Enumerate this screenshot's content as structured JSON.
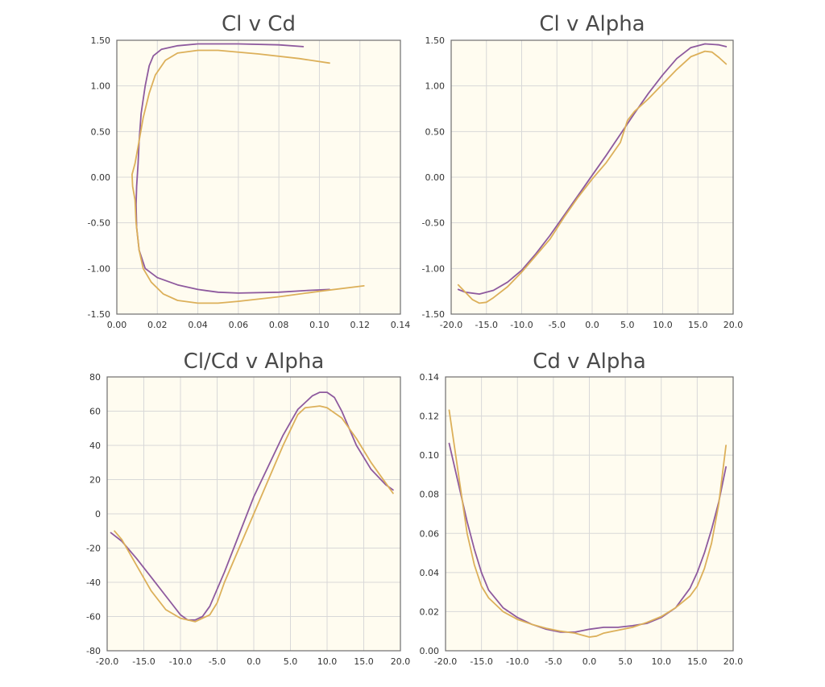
{
  "colors": {
    "series_a": "#8e5a9e",
    "series_b": "#dcb05a",
    "plot_bg": "#fffcf0",
    "grid": "#d8d8d8"
  },
  "chart_data": [
    {
      "type": "line",
      "title": "Cl v Cd",
      "xlabel": "",
      "ylabel": "",
      "xlim": [
        0,
        0.14
      ],
      "ylim": [
        -1.5,
        1.5
      ],
      "x_ticks": [
        "0.00",
        "0.02",
        "0.04",
        "0.06",
        "0.08",
        "0.10",
        "0.12",
        "0.14"
      ],
      "y_ticks": [
        "-1.50",
        "-1.00",
        "-0.50",
        "0.00",
        "0.50",
        "1.00",
        "1.50"
      ],
      "grid": true,
      "series": [
        {
          "points": [
            [
              0.092,
              1.43
            ],
            [
              0.08,
              1.45
            ],
            [
              0.06,
              1.46
            ],
            [
              0.04,
              1.46
            ],
            [
              0.03,
              1.44
            ],
            [
              0.022,
              1.4
            ],
            [
              0.018,
              1.33
            ],
            [
              0.016,
              1.22
            ],
            [
              0.014,
              1.0
            ],
            [
              0.012,
              0.7
            ],
            [
              0.011,
              0.4
            ],
            [
              0.0105,
              0.15
            ],
            [
              0.0098,
              -0.1
            ],
            [
              0.0095,
              -0.3
            ],
            [
              0.0098,
              -0.55
            ],
            [
              0.011,
              -0.8
            ],
            [
              0.014,
              -1.0
            ],
            [
              0.02,
              -1.1
            ],
            [
              0.03,
              -1.18
            ],
            [
              0.04,
              -1.23
            ],
            [
              0.05,
              -1.26
            ],
            [
              0.06,
              -1.27
            ],
            [
              0.08,
              -1.26
            ],
            [
              0.095,
              -1.24
            ],
            [
              0.105,
              -1.23
            ]
          ]
        },
        {
          "points": [
            [
              0.105,
              1.25
            ],
            [
              0.09,
              1.3
            ],
            [
              0.07,
              1.35
            ],
            [
              0.05,
              1.39
            ],
            [
              0.04,
              1.39
            ],
            [
              0.03,
              1.36
            ],
            [
              0.024,
              1.28
            ],
            [
              0.019,
              1.12
            ],
            [
              0.016,
              0.92
            ],
            [
              0.013,
              0.65
            ],
            [
              0.011,
              0.4
            ],
            [
              0.009,
              0.15
            ],
            [
              0.0075,
              0.03
            ],
            [
              0.0078,
              -0.1
            ],
            [
              0.009,
              -0.25
            ],
            [
              0.0095,
              -0.5
            ],
            [
              0.011,
              -0.8
            ],
            [
              0.013,
              -1.0
            ],
            [
              0.017,
              -1.15
            ],
            [
              0.023,
              -1.28
            ],
            [
              0.03,
              -1.35
            ],
            [
              0.04,
              -1.38
            ],
            [
              0.05,
              -1.38
            ],
            [
              0.06,
              -1.36
            ],
            [
              0.08,
              -1.31
            ],
            [
              0.1,
              -1.25
            ],
            [
              0.122,
              -1.19
            ]
          ]
        }
      ]
    },
    {
      "type": "line",
      "title": "Cl v Alpha",
      "xlabel": "",
      "ylabel": "",
      "xlim": [
        -20,
        20
      ],
      "ylim": [
        -1.5,
        1.5
      ],
      "x_ticks": [
        "-20.0",
        "-15.0",
        "-10.0",
        "-5.0",
        "0.0",
        "5.0",
        "10.0",
        "15.0",
        "20.0"
      ],
      "y_ticks": [
        "-1.50",
        "-1.00",
        "-0.50",
        "0.00",
        "0.50",
        "1.00",
        "1.50"
      ],
      "grid": true,
      "series": [
        {
          "points": [
            [
              -19,
              -1.23
            ],
            [
              -18,
              -1.26
            ],
            [
              -16,
              -1.28
            ],
            [
              -14,
              -1.24
            ],
            [
              -12,
              -1.15
            ],
            [
              -10,
              -1.02
            ],
            [
              -8,
              -0.84
            ],
            [
              -6,
              -0.64
            ],
            [
              -4,
              -0.42
            ],
            [
              -2,
              -0.2
            ],
            [
              0,
              0.02
            ],
            [
              2,
              0.24
            ],
            [
              4,
              0.47
            ],
            [
              6,
              0.7
            ],
            [
              8,
              0.92
            ],
            [
              10,
              1.12
            ],
            [
              12,
              1.3
            ],
            [
              14,
              1.42
            ],
            [
              16,
              1.46
            ],
            [
              18,
              1.45
            ],
            [
              19,
              1.43
            ]
          ]
        },
        {
          "points": [
            [
              -19,
              -1.18
            ],
            [
              -18,
              -1.26
            ],
            [
              -17,
              -1.34
            ],
            [
              -16,
              -1.38
            ],
            [
              -15,
              -1.37
            ],
            [
              -14,
              -1.32
            ],
            [
              -12,
              -1.2
            ],
            [
              -10,
              -1.04
            ],
            [
              -8,
              -0.86
            ],
            [
              -6,
              -0.68
            ],
            [
              -4,
              -0.44
            ],
            [
              -2,
              -0.22
            ],
            [
              0,
              -0.02
            ],
            [
              2,
              0.16
            ],
            [
              4,
              0.38
            ],
            [
              5,
              0.62
            ],
            [
              6,
              0.72
            ],
            [
              8,
              0.86
            ],
            [
              10,
              1.02
            ],
            [
              12,
              1.18
            ],
            [
              14,
              1.32
            ],
            [
              16,
              1.38
            ],
            [
              17,
              1.37
            ],
            [
              18,
              1.31
            ],
            [
              19,
              1.24
            ]
          ]
        }
      ]
    },
    {
      "type": "line",
      "title": "Cl/Cd v Alpha",
      "xlabel": "",
      "ylabel": "",
      "xlim": [
        -20,
        20
      ],
      "ylim": [
        -80,
        80
      ],
      "x_ticks": [
        "-20.0",
        "-15.0",
        "-10.0",
        "-5.0",
        "0.0",
        "5.0",
        "10.0",
        "15.0",
        "20.0"
      ],
      "y_ticks": [
        "-80",
        "-60",
        "-40",
        "-20",
        "0",
        "20",
        "40",
        "60",
        "80"
      ],
      "grid": true,
      "series": [
        {
          "points": [
            [
              -19.5,
              -11
            ],
            [
              -18,
              -16
            ],
            [
              -16,
              -26
            ],
            [
              -14,
              -37
            ],
            [
              -12,
              -48
            ],
            [
              -10,
              -59
            ],
            [
              -9,
              -62
            ],
            [
              -8,
              -62
            ],
            [
              -7,
              -60
            ],
            [
              -6,
              -54
            ],
            [
              -4,
              -34
            ],
            [
              -2,
              -12
            ],
            [
              0,
              10
            ],
            [
              2,
              28
            ],
            [
              4,
              46
            ],
            [
              6,
              61
            ],
            [
              8,
              69
            ],
            [
              9,
              71
            ],
            [
              10,
              71
            ],
            [
              11,
              68
            ],
            [
              12,
              60
            ],
            [
              14,
              40
            ],
            [
              16,
              26
            ],
            [
              18,
              17
            ],
            [
              19,
              14
            ]
          ]
        },
        {
          "points": [
            [
              -19,
              -10
            ],
            [
              -18,
              -15
            ],
            [
              -16,
              -30
            ],
            [
              -14,
              -45
            ],
            [
              -12,
              -56
            ],
            [
              -10,
              -61
            ],
            [
              -8,
              -63
            ],
            [
              -6,
              -59
            ],
            [
              -5,
              -52
            ],
            [
              -4,
              -40
            ],
            [
              -2,
              -20
            ],
            [
              0,
              0
            ],
            [
              2,
              20
            ],
            [
              4,
              40
            ],
            [
              6,
              58
            ],
            [
              7,
              62
            ],
            [
              9,
              63
            ],
            [
              10,
              62
            ],
            [
              12,
              56
            ],
            [
              14,
              44
            ],
            [
              16,
              30
            ],
            [
              18,
              18
            ],
            [
              19,
              12
            ]
          ]
        }
      ]
    },
    {
      "type": "line",
      "title": "Cd v Alpha",
      "xlabel": "",
      "ylabel": "",
      "xlim": [
        -20,
        20
      ],
      "ylim": [
        0,
        0.14
      ],
      "x_ticks": [
        "-20.0",
        "-15.0",
        "-10.0",
        "-5.0",
        "0.0",
        "5.0",
        "10.0",
        "15.0",
        "20.0"
      ],
      "y_ticks": [
        "0.00",
        "0.02",
        "0.04",
        "0.06",
        "0.08",
        "0.10",
        "0.12",
        "0.14"
      ],
      "grid": true,
      "series": [
        {
          "points": [
            [
              -19.5,
              0.106
            ],
            [
              -18,
              0.082
            ],
            [
              -17,
              0.066
            ],
            [
              -16,
              0.052
            ],
            [
              -15,
              0.04
            ],
            [
              -14,
              0.031
            ],
            [
              -12,
              0.022
            ],
            [
              -10,
              0.017
            ],
            [
              -8,
              0.0135
            ],
            [
              -6,
              0.011
            ],
            [
              -4,
              0.0095
            ],
            [
              -2,
              0.0095
            ],
            [
              0,
              0.011
            ],
            [
              2,
              0.012
            ],
            [
              4,
              0.012
            ],
            [
              6,
              0.0128
            ],
            [
              8,
              0.014
            ],
            [
              10,
              0.017
            ],
            [
              12,
              0.022
            ],
            [
              14,
              0.032
            ],
            [
              15,
              0.04
            ],
            [
              16,
              0.05
            ],
            [
              17,
              0.062
            ],
            [
              18,
              0.076
            ],
            [
              19,
              0.094
            ]
          ]
        },
        {
          "points": [
            [
              -19.5,
              0.123
            ],
            [
              -18,
              0.085
            ],
            [
              -17,
              0.06
            ],
            [
              -16,
              0.044
            ],
            [
              -15,
              0.033
            ],
            [
              -14,
              0.027
            ],
            [
              -12,
              0.02
            ],
            [
              -10,
              0.016
            ],
            [
              -8,
              0.0135
            ],
            [
              -6,
              0.0115
            ],
            [
              -4,
              0.01
            ],
            [
              -2,
              0.009
            ],
            [
              -1,
              0.008
            ],
            [
              0,
              0.007
            ],
            [
              1,
              0.0075
            ],
            [
              2,
              0.009
            ],
            [
              4,
              0.0105
            ],
            [
              6,
              0.012
            ],
            [
              8,
              0.0145
            ],
            [
              10,
              0.0175
            ],
            [
              12,
              0.022
            ],
            [
              14,
              0.028
            ],
            [
              15,
              0.033
            ],
            [
              16,
              0.042
            ],
            [
              17,
              0.055
            ],
            [
              18,
              0.075
            ],
            [
              19,
              0.105
            ]
          ]
        }
      ]
    }
  ]
}
